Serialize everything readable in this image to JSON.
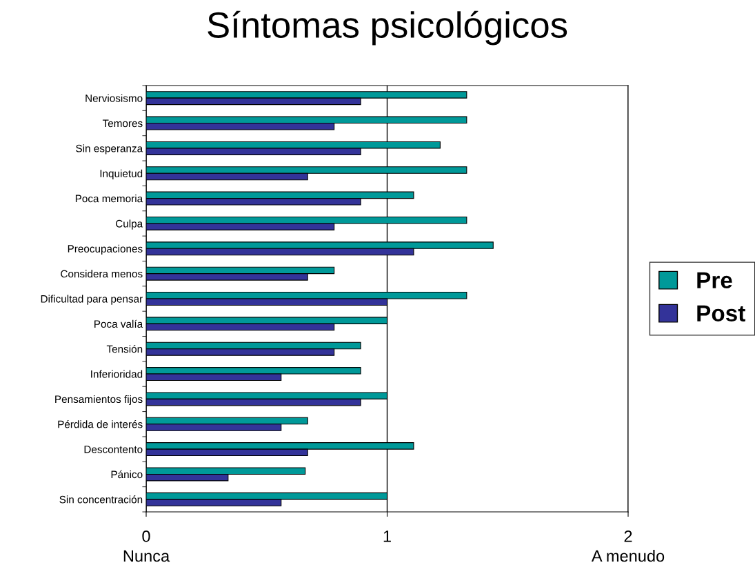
{
  "chart_data": {
    "type": "bar",
    "orientation": "horizontal",
    "title": "Síntomas psicológicos",
    "categories": [
      "Nerviosismo",
      "Temores",
      "Sin esperanza",
      "Inquietud",
      "Poca memoria",
      "Culpa",
      "Preocupaciones",
      "Considera menos",
      "Dificultad para pensar",
      "Poca valía",
      "Tensión",
      "Inferioridad",
      "Pensamientos fijos",
      "Pérdida de interés",
      "Descontento",
      "Pánico",
      "Sin concentración"
    ],
    "series": [
      {
        "name": "Pre",
        "color": "#009999",
        "values": [
          1.33,
          1.33,
          1.22,
          1.33,
          1.11,
          1.33,
          1.44,
          0.78,
          1.33,
          1.0,
          0.89,
          0.89,
          1.0,
          0.67,
          1.11,
          0.66,
          1.0
        ]
      },
      {
        "name": "Post",
        "color": "#333399",
        "values": [
          0.89,
          0.78,
          0.89,
          0.67,
          0.89,
          0.78,
          1.11,
          0.67,
          1.0,
          0.78,
          0.78,
          0.56,
          0.89,
          0.56,
          0.67,
          0.34,
          0.56
        ]
      }
    ],
    "xlim": [
      0,
      2
    ],
    "xticks": [
      0,
      1,
      2
    ],
    "grid": "x",
    "legend": "right",
    "annotations": [
      "Nunca",
      "A menudo"
    ]
  }
}
